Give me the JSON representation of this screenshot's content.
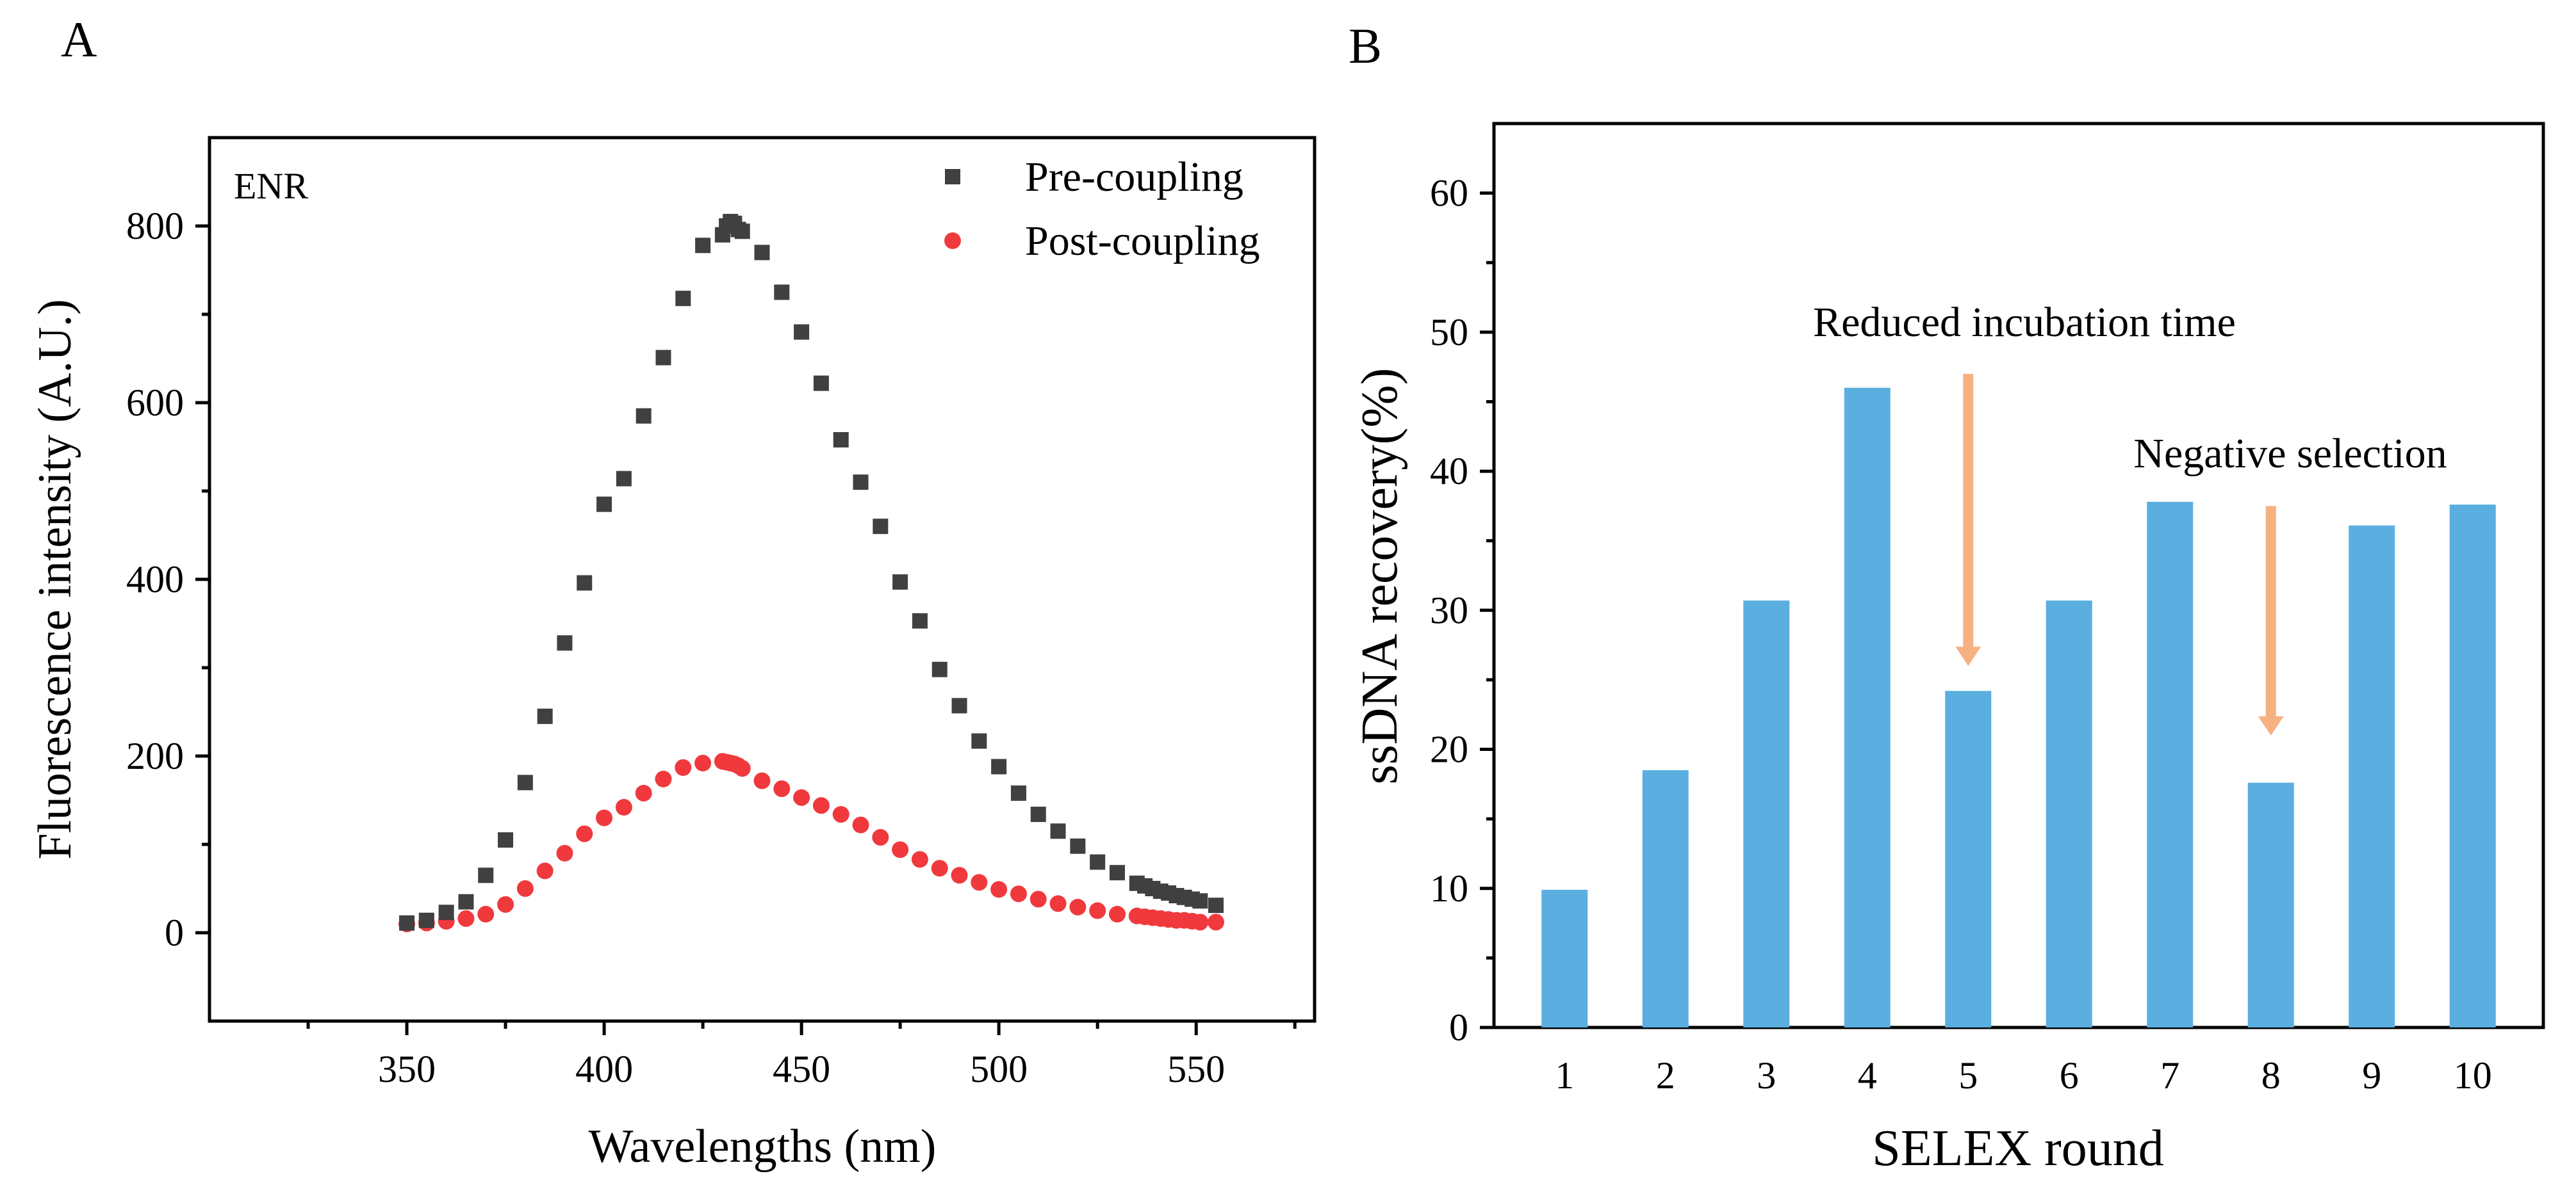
{
  "panel_labels": {
    "a": "A",
    "b": "B"
  },
  "colors": {
    "pre_marker": "#404040",
    "post_marker": "#f0393d",
    "bar_fill": "#5aaee0",
    "arrow": "#f6b183"
  },
  "chart_data": [
    {
      "type": "scatter",
      "panel": "A",
      "annotation": "ENR",
      "xlabel": "Wavelengths (nm)",
      "ylabel": "Fluorescence intensity (A.U.)",
      "xlim": [
        300,
        580
      ],
      "ylim": [
        -100,
        900
      ],
      "xticks": [
        350,
        400,
        450,
        500,
        550
      ],
      "yticks": [
        0,
        200,
        400,
        600,
        800
      ],
      "legend_position": "top-right",
      "series": [
        {
          "name": "Pre-coupling",
          "marker": "square",
          "x": [
            350,
            355,
            360,
            365,
            370,
            375,
            380,
            385,
            390,
            395,
            400,
            405,
            410,
            415,
            420,
            425,
            430,
            431,
            432,
            433,
            434,
            435,
            440,
            445,
            450,
            455,
            460,
            465,
            470,
            475,
            480,
            485,
            490,
            495,
            500,
            505,
            510,
            515,
            520,
            525,
            530,
            535,
            537,
            539,
            541,
            543,
            545,
            547,
            549,
            551,
            555
          ],
          "y": [
            11,
            14,
            23,
            35,
            65,
            105,
            170,
            245,
            328,
            396,
            485,
            514,
            585,
            651,
            718,
            778,
            790,
            800,
            805,
            803,
            796,
            794,
            770,
            725,
            680,
            622,
            558,
            510,
            460,
            397,
            353,
            298,
            257,
            217,
            188,
            158,
            134,
            115,
            98,
            80,
            68,
            56,
            53,
            50,
            47,
            45,
            42,
            40,
            38,
            36,
            31
          ]
        },
        {
          "name": "Post-coupling",
          "marker": "circle",
          "x": [
            350,
            355,
            360,
            365,
            370,
            375,
            380,
            385,
            390,
            395,
            400,
            405,
            410,
            415,
            420,
            425,
            430,
            431,
            432,
            433,
            434,
            435,
            440,
            445,
            450,
            455,
            460,
            465,
            470,
            475,
            480,
            485,
            490,
            495,
            500,
            505,
            510,
            515,
            520,
            525,
            530,
            535,
            537,
            539,
            541,
            543,
            545,
            547,
            549,
            551,
            555
          ],
          "y": [
            10,
            11,
            13,
            16,
            21,
            32,
            50,
            70,
            90,
            112,
            130,
            142,
            158,
            174,
            187,
            192,
            194,
            193,
            192,
            191,
            189,
            186,
            172,
            163,
            153,
            144,
            134,
            122,
            108,
            94,
            83,
            73,
            65,
            57,
            49,
            44,
            38,
            33,
            29,
            25,
            21,
            19,
            18,
            17,
            16,
            15,
            14,
            14,
            13,
            12,
            12
          ]
        }
      ]
    },
    {
      "type": "bar",
      "panel": "B",
      "xlabel": "SELEX round",
      "ylabel": "ssDNA recovery(%)",
      "ylim": [
        0,
        65
      ],
      "yticks": [
        0,
        10,
        20,
        30,
        40,
        50,
        60
      ],
      "categories": [
        "1",
        "2",
        "3",
        "4",
        "5",
        "6",
        "7",
        "8",
        "9",
        "10"
      ],
      "values": [
        9.9,
        18.5,
        30.7,
        46.0,
        24.2,
        30.7,
        37.8,
        17.6,
        36.1,
        37.6
      ],
      "annotations": [
        {
          "text": "Reduced incubation time",
          "category": "5",
          "arrow_from": 47,
          "arrow_to": 26
        },
        {
          "text": "Negative selection",
          "category": "8",
          "arrow_from": 37.5,
          "arrow_to": 21
        }
      ]
    }
  ]
}
